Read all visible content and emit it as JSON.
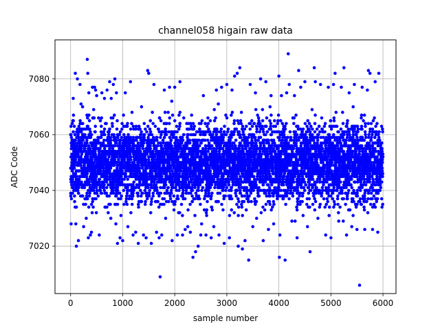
{
  "chart_data": {
    "type": "scatter",
    "title": "channel058 higain raw data",
    "xlabel": "sample number",
    "ylabel": "ADC Code",
    "xlim": [
      -300,
      6250
    ],
    "ylim": [
      7003,
      7094
    ],
    "x_ticks": [
      0,
      1000,
      2000,
      3000,
      4000,
      5000,
      6000
    ],
    "y_ticks": [
      7020,
      7040,
      7060,
      7080
    ],
    "grid": true,
    "marker_color": "#0000ff",
    "n_samples": 6000,
    "typical_range": [
      7030,
      7070
    ],
    "series": [
      {
        "points": [
          [
            50,
            7073
          ],
          [
            55,
            7067
          ],
          [
            60,
            7048
          ],
          [
            65,
            7045
          ],
          [
            70,
            7042
          ],
          [
            75,
            7038
          ],
          [
            80,
            7052
          ],
          [
            85,
            7055
          ],
          [
            90,
            7082
          ],
          [
            100,
            7028
          ],
          [
            110,
            7020
          ],
          [
            130,
            7080
          ],
          [
            150,
            7022
          ],
          [
            180,
            7078
          ],
          [
            200,
            7071
          ],
          [
            230,
            7070
          ],
          [
            250,
            7027
          ],
          [
            300,
            7030
          ],
          [
            320,
            7087
          ],
          [
            330,
            7082
          ],
          [
            340,
            7023
          ],
          [
            350,
            7075
          ],
          [
            380,
            7024
          ],
          [
            400,
            7025
          ],
          [
            420,
            7077
          ],
          [
            460,
            7077
          ],
          [
            480,
            7076
          ],
          [
            500,
            7074
          ],
          [
            550,
            7024
          ],
          [
            600,
            7075
          ],
          [
            650,
            7073
          ],
          [
            700,
            7076
          ],
          [
            750,
            7079
          ],
          [
            780,
            7073
          ],
          [
            820,
            7078
          ],
          [
            850,
            7080
          ],
          [
            880,
            7075
          ],
          [
            900,
            7021
          ],
          [
            950,
            7023
          ],
          [
            1000,
            7022
          ],
          [
            1050,
            7075
          ],
          [
            1100,
            7027
          ],
          [
            1150,
            7079
          ],
          [
            1200,
            7024
          ],
          [
            1250,
            7025
          ],
          [
            1300,
            7021
          ],
          [
            1400,
            7024
          ],
          [
            1450,
            7023
          ],
          [
            1480,
            7083
          ],
          [
            1500,
            7082
          ],
          [
            1550,
            7021
          ],
          [
            1600,
            7078
          ],
          [
            1650,
            7025
          ],
          [
            1700,
            7023
          ],
          [
            1720,
            7009
          ],
          [
            1750,
            7024
          ],
          [
            1800,
            7076
          ],
          [
            1900,
            7077
          ],
          [
            1950,
            7022
          ],
          [
            2000,
            7077
          ],
          [
            2050,
            7024
          ],
          [
            2100,
            7079
          ],
          [
            2150,
            7024
          ],
          [
            2200,
            7026
          ],
          [
            2250,
            7027
          ],
          [
            2300,
            7025
          ],
          [
            2350,
            7016
          ],
          [
            2400,
            7018
          ],
          [
            2450,
            7020
          ],
          [
            2500,
            7024
          ],
          [
            2550,
            7074
          ],
          [
            2600,
            7024
          ],
          [
            2700,
            7023
          ],
          [
            2750,
            7027
          ],
          [
            2800,
            7076
          ],
          [
            2850,
            7024
          ],
          [
            2900,
            7077
          ],
          [
            2950,
            7021
          ],
          [
            3000,
            7078
          ],
          [
            3050,
            7023
          ],
          [
            3100,
            7076
          ],
          [
            3150,
            7081
          ],
          [
            3200,
            7082
          ],
          [
            3220,
            7020
          ],
          [
            3250,
            7084
          ],
          [
            3300,
            7019
          ],
          [
            3350,
            7022
          ],
          [
            3420,
            7015
          ],
          [
            3450,
            7078
          ],
          [
            3500,
            7027
          ],
          [
            3550,
            7075
          ],
          [
            3650,
            7080
          ],
          [
            3700,
            7022
          ],
          [
            3750,
            7079
          ],
          [
            3800,
            7026
          ],
          [
            3850,
            7074
          ],
          [
            3900,
            7028
          ],
          [
            4000,
            7081
          ],
          [
            4010,
            7016
          ],
          [
            4020,
            7024
          ],
          [
            4050,
            7074
          ],
          [
            4120,
            7015
          ],
          [
            4150,
            7075
          ],
          [
            4180,
            7089
          ],
          [
            4200,
            7078
          ],
          [
            4250,
            7029
          ],
          [
            4300,
            7074
          ],
          [
            4350,
            7023
          ],
          [
            4380,
            7083
          ],
          [
            4420,
            7077
          ],
          [
            4500,
            7079
          ],
          [
            4550,
            7027
          ],
          [
            4600,
            7018
          ],
          [
            4680,
            7084
          ],
          [
            4700,
            7079
          ],
          [
            4750,
            7030
          ],
          [
            4800,
            7078
          ],
          [
            4900,
            7024
          ],
          [
            4950,
            7077
          ],
          [
            5000,
            7023
          ],
          [
            5050,
            7078
          ],
          [
            5080,
            7082
          ],
          [
            5150,
            7029
          ],
          [
            5200,
            7077
          ],
          [
            5250,
            7084
          ],
          [
            5300,
            7024
          ],
          [
            5350,
            7075
          ],
          [
            5400,
            7027
          ],
          [
            5450,
            7078
          ],
          [
            5500,
            7026
          ],
          [
            5550,
            7006
          ],
          [
            5600,
            7077
          ],
          [
            5650,
            7026
          ],
          [
            5700,
            7076
          ],
          [
            5720,
            7083
          ],
          [
            5750,
            7082
          ],
          [
            5800,
            7026
          ],
          [
            5850,
            7079
          ],
          [
            5900,
            7025
          ],
          [
            5920,
            7082
          ]
        ]
      }
    ]
  }
}
